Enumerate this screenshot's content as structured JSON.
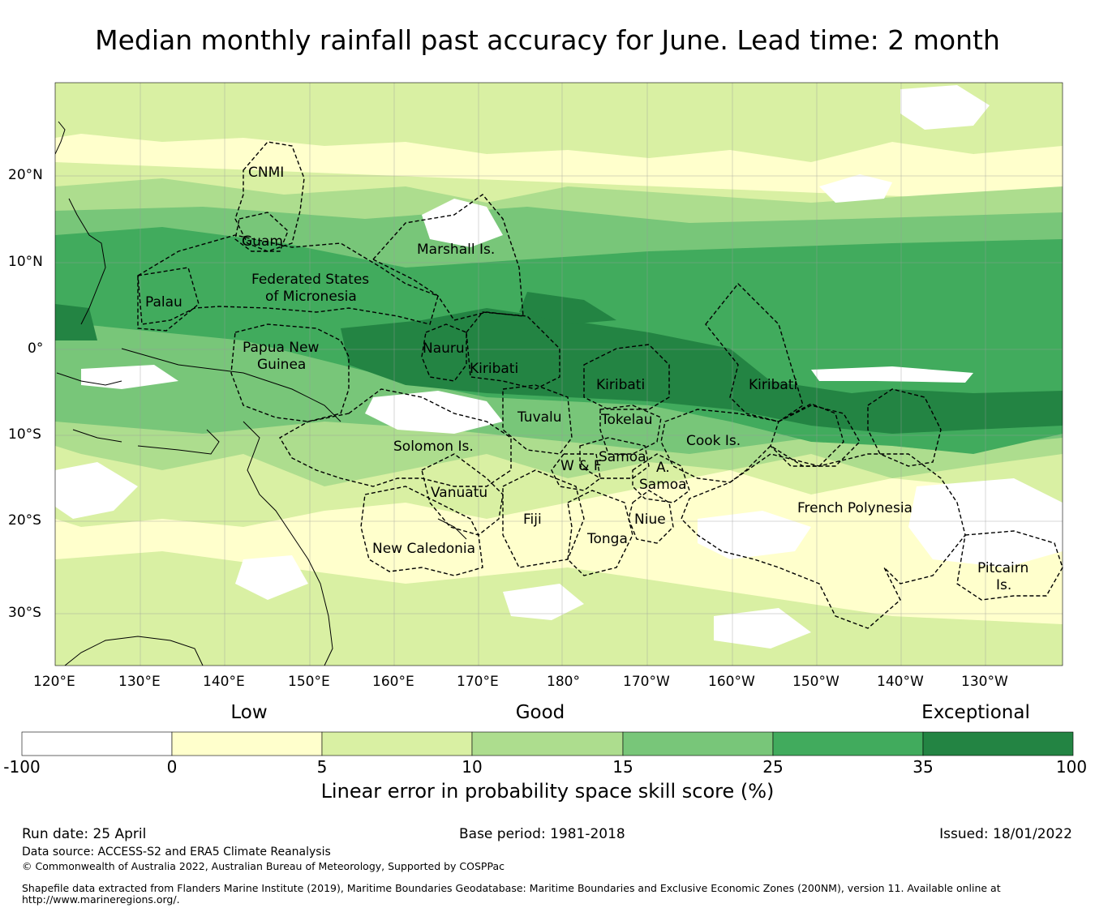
{
  "title": "Median monthly rainfall past accuracy for June. Lead time: 2 month",
  "map": {
    "lat_ticks": [
      "20°N",
      "10°N",
      "0°",
      "10°S",
      "20°S",
      "30°S"
    ],
    "lon_ticks": [
      "120°E",
      "130°E",
      "140°E",
      "150°E",
      "160°E",
      "170°E",
      "180°",
      "170°W",
      "160°W",
      "150°W",
      "140°W",
      "130°W"
    ],
    "regions": [
      {
        "label": "CNMI"
      },
      {
        "label": "Guam"
      },
      {
        "label": "Marshall Is."
      },
      {
        "label": "Federated States"
      },
      {
        "label": "of Micronesia"
      },
      {
        "label": "Palau"
      },
      {
        "label": "Papua New"
      },
      {
        "label": "Guinea"
      },
      {
        "label": "Nauru"
      },
      {
        "label": "Kiribati"
      },
      {
        "label": "Kiribati"
      },
      {
        "label": "Kiribati"
      },
      {
        "label": "Tuvalu"
      },
      {
        "label": "Tokelau"
      },
      {
        "label": "Cook Is."
      },
      {
        "label": "Solomon Is."
      },
      {
        "label": "Samoa"
      },
      {
        "label": "W & F"
      },
      {
        "label": "A."
      },
      {
        "label": "Samoa"
      },
      {
        "label": "Vanuatu"
      },
      {
        "label": "Fiji"
      },
      {
        "label": "Niue"
      },
      {
        "label": "Tonga"
      },
      {
        "label": "French Polynesia"
      },
      {
        "label": "New Caledonia"
      },
      {
        "label": "Pitcairn"
      },
      {
        "label": "Is."
      }
    ]
  },
  "legend": {
    "levels": [
      "Low",
      "Good",
      "Exceptional"
    ],
    "ticks": [
      "-100",
      "0",
      "5",
      "10",
      "15",
      "25",
      "35",
      "100"
    ],
    "colors": [
      "#ffffff",
      "#ffffcc",
      "#d9f0a3",
      "#addd8e",
      "#78c679",
      "#41ab5d",
      "#238443"
    ],
    "label": "Linear error in probability space skill score (%)"
  },
  "footer": {
    "run_date": "Run date: 25 April",
    "base_period": "Base period: 1981-2018",
    "issued": "Issued: 18/01/2022",
    "data_source": "Data source: ACCESS-S2 and ERA5 Climate Reanalysis",
    "copyright": "© Commonwealth of Australia 2022, Australian Bureau of Meteorology, Supported by COSPPac",
    "shapefile_line1": "Shapefile data extracted from Flanders Marine Institute (2019), Maritime Boundaries Geodatabase: Maritime Boundaries and Exclusive Economic Zones (200NM), version 11. Available online at",
    "shapefile_line2": "http://www.marineregions.org/."
  }
}
